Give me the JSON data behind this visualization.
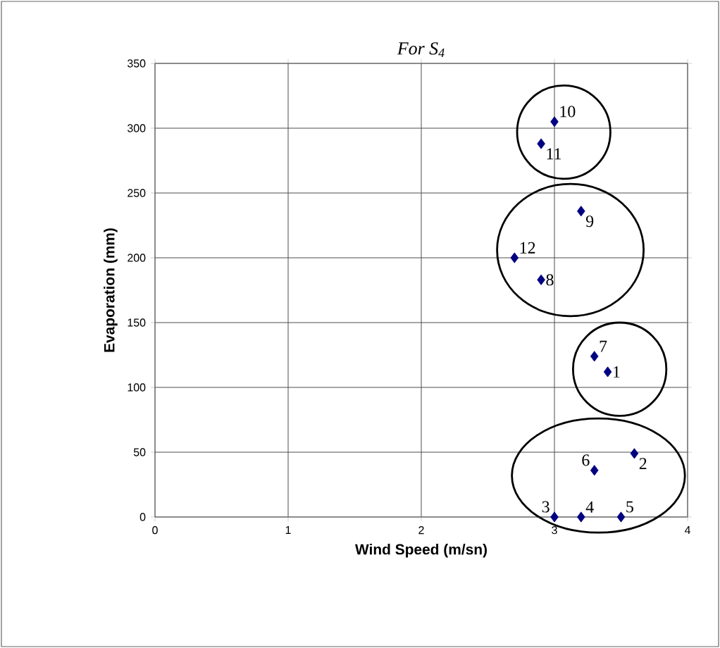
{
  "chart_data": {
    "type": "scatter",
    "title": "*For S$_{4}$*",
    "xlabel": "Wind Speed (m/sn)",
    "ylabel": "Evaporation (mm)",
    "x": [
      3.4,
      3.6,
      3.0,
      3.2,
      3.5,
      3.3,
      3.3,
      2.9,
      3.2,
      3.0,
      2.9,
      2.7
    ],
    "series": [
      {
        "color": "#000080",
        "values": [
          112,
          49,
          0,
          0,
          0,
          36,
          124,
          183,
          236,
          305,
          288,
          200
        ]
      }
    ],
    "marker": "diamond",
    "grid": true,
    "xlim": [
      0,
      4
    ],
    "xticks": [
      0,
      1,
      2,
      3,
      4
    ],
    "ylim": [
      0,
      350
    ],
    "yticks": [
      0,
      50,
      100,
      150,
      200,
      250,
      300,
      350
    ],
    "annotations": [
      {
        "text": "1",
        "x": 3.4,
        "y": 112
      },
      {
        "text": "2",
        "x": 3.6,
        "y": 49
      },
      {
        "text": "3",
        "x": 3.0,
        "y": 0
      },
      {
        "text": "4",
        "x": 3.2,
        "y": 0
      },
      {
        "text": "5",
        "x": 3.5,
        "y": 0
      },
      {
        "text": "6",
        "x": 3.3,
        "y": 36
      },
      {
        "text": "7",
        "x": 3.3,
        "y": 124
      },
      {
        "text": "8",
        "x": 2.9,
        "y": 183
      },
      {
        "text": "9",
        "x": 3.2,
        "y": 236
      },
      {
        "text": "10",
        "x": 3.0,
        "y": 305
      },
      {
        "text": "11",
        "x": 2.9,
        "y": 288
      },
      {
        "text": "12",
        "x": 2.7,
        "y": 200
      }
    ]
  }
}
